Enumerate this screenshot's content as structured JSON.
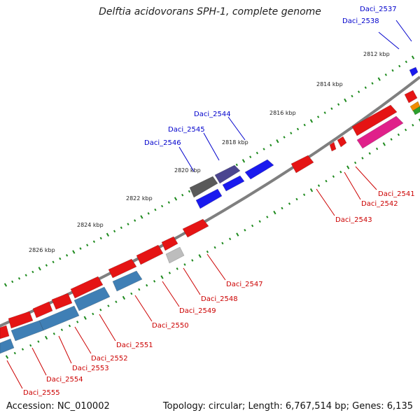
{
  "title": "Delftia acidovorans SPH-1, complete genome",
  "accession": "Accession: NC_010002",
  "summary": "Topology: circular; Length: 6,767,514 bp; Genes: 6,135",
  "colors": {
    "backbone": "#7f7f7f",
    "tick": "#1e8a1e",
    "label_forward": "#0000cc",
    "label_reverse": "#cc0000",
    "gene_red": "#e51414",
    "gene_blue": "#1a1aee",
    "gene_steelblue": "#3f7fb5",
    "gene_magenta": "#e0208a",
    "gene_darkgray": "#5a5a5a",
    "gene_slate": "#4b4590",
    "gene_lightgray": "#bdbdbd",
    "gene_orange": "#f08c00",
    "gene_green": "#2ca02c"
  },
  "kbp_labels": [
    "2812 kbp",
    "2814 kbp",
    "2816 kbp",
    "2818 kbp",
    "2820 kbp",
    "2822 kbp",
    "2824 kbp",
    "2826 kbp"
  ],
  "gene_labels_forward": [
    "Daci_2537",
    "Daci_2538",
    "Daci_2544",
    "Daci_2545",
    "Daci_2546"
  ],
  "gene_labels_reverse": [
    "Daci_2541",
    "Daci_2542",
    "Daci_2543",
    "Daci_2547",
    "Daci_2548",
    "Daci_2549",
    "Daci_2550",
    "Daci_2551",
    "Daci_2552",
    "Daci_2553",
    "Daci_2554",
    "Daci_2555"
  ]
}
